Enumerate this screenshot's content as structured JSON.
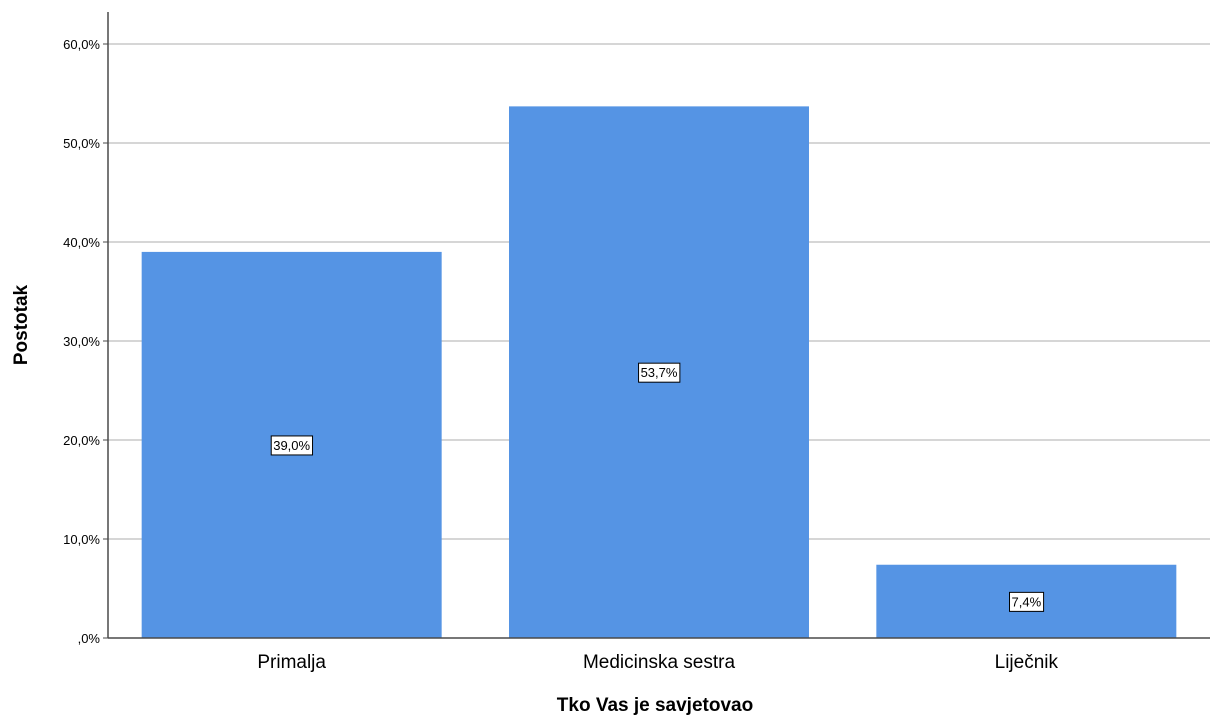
{
  "chart_data": {
    "type": "bar",
    "categories": [
      "Primalja",
      "Medicinska sestra",
      "Liječnik"
    ],
    "values": [
      39.0,
      53.7,
      7.4
    ],
    "value_labels": [
      "39,0%",
      "53,7%",
      "7,4%"
    ],
    "xlabel": "Tko Vas je savjetovao",
    "ylabel": "Postotak",
    "ylim": [
      0,
      60
    ],
    "yticks": [
      0,
      10,
      20,
      30,
      40,
      50,
      60
    ],
    "ytick_labels": [
      ",0%",
      "10,0%",
      "20,0%",
      "30,0%",
      "40,0%",
      "50,0%",
      "60,0%"
    ],
    "grid": true,
    "colors": {
      "bar": "#5594E4",
      "grid": "#C8C8C8",
      "axis": "#4A4A4A"
    }
  }
}
